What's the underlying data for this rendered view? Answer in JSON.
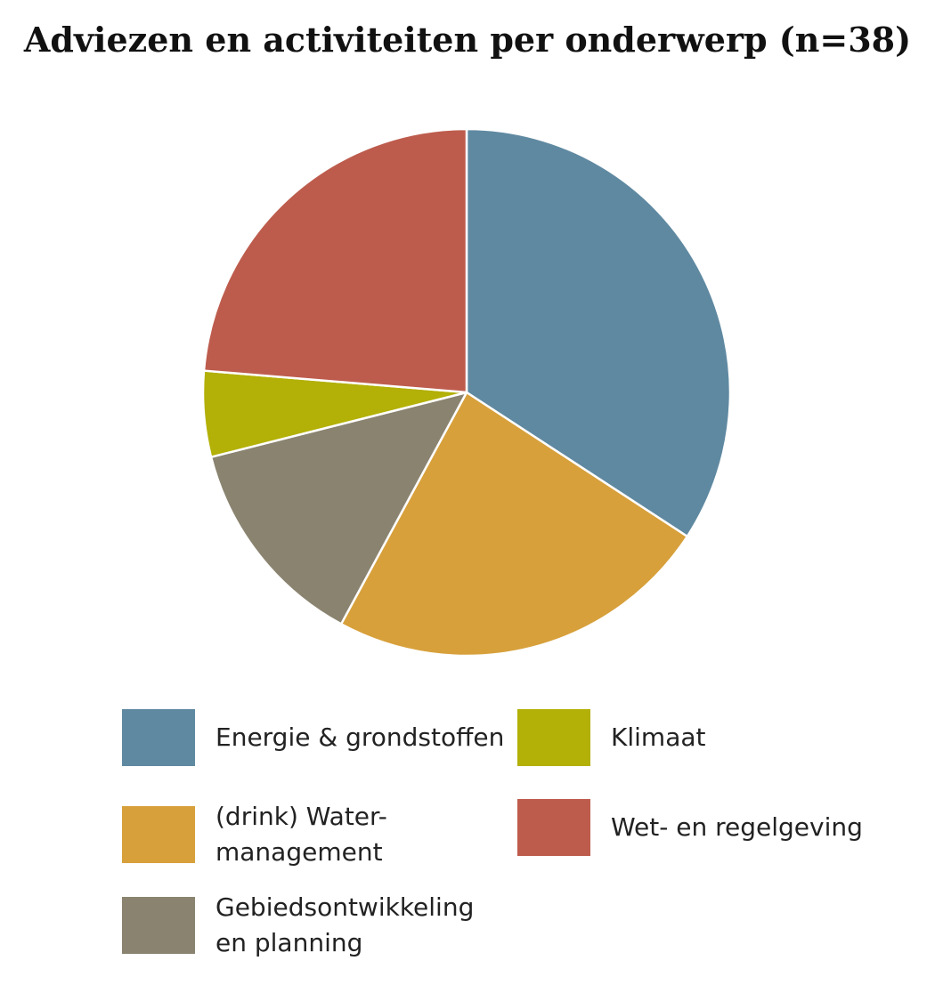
{
  "chart_data": {
    "type": "pie",
    "title": "Adviezen en activiteiten per onderwerp (n=38)",
    "slices": [
      {
        "label": "Energie & grondstoffen",
        "value": 13,
        "color": "#5f89a1"
      },
      {
        "label": "(drink) Water-\nmanagement",
        "value": 9,
        "color": "#d7a03b"
      },
      {
        "label": "Gebiedsontwikkeling\nen planning",
        "value": 5,
        "color": "#8a8370"
      },
      {
        "label": "Klimaat",
        "value": 2,
        "color": "#b3b007"
      },
      {
        "label": "Wet- en regelgeving",
        "value": 9,
        "color": "#bd5c4d"
      }
    ],
    "start_angle": "12 o'clock",
    "direction": "clockwise",
    "legend_position": "bottom"
  }
}
